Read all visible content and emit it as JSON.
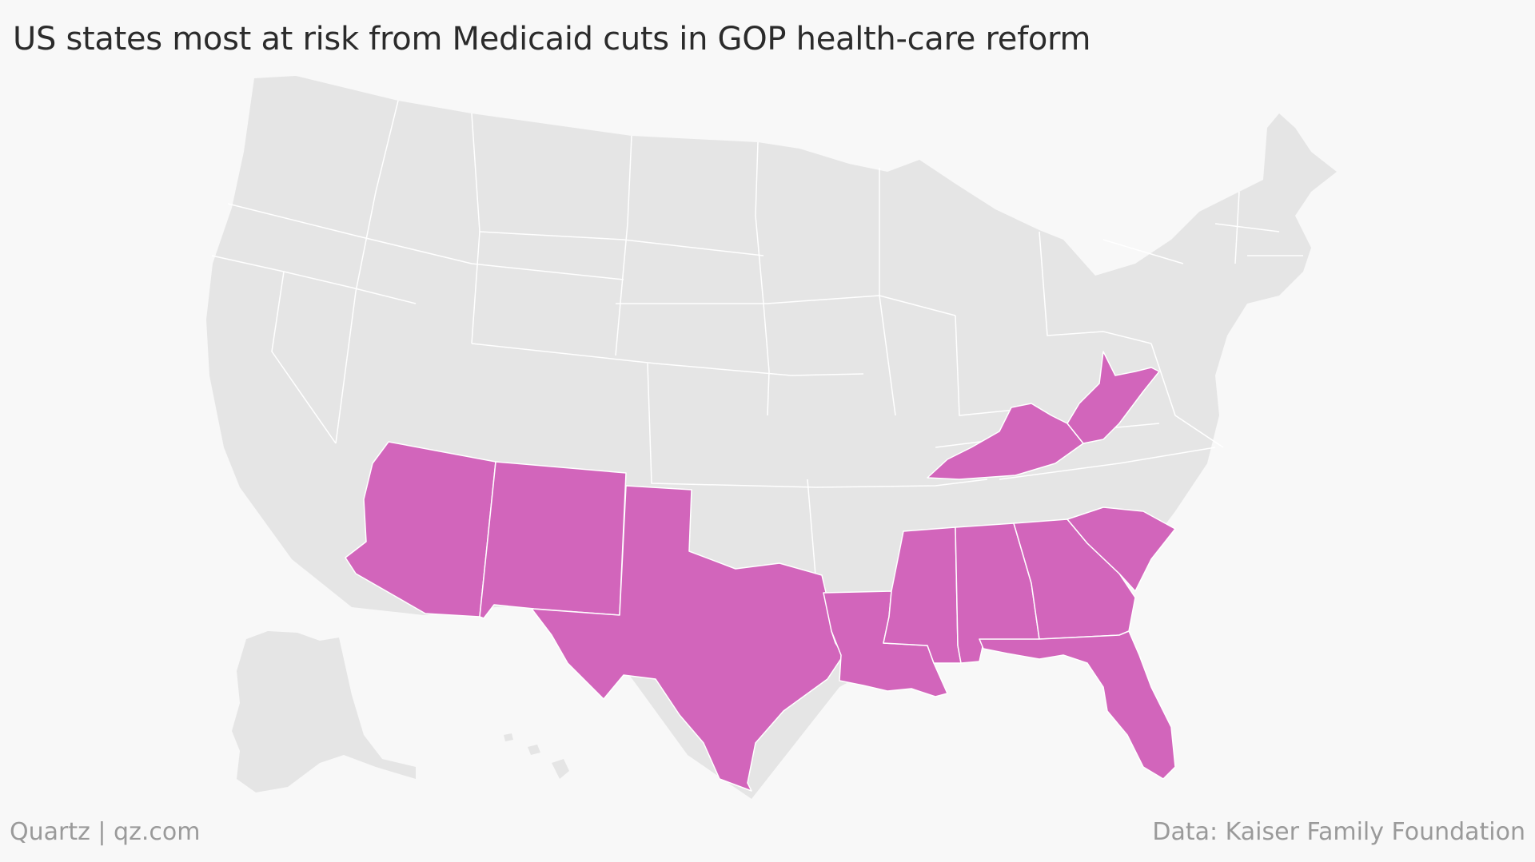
{
  "title": "US states most at risk from Medicaid cuts in GOP health-care reform",
  "footer": {
    "source_left": "Quartz | qz.com",
    "source_right": "Data: Kaiser Family Foundation"
  },
  "colors": {
    "background": "#f8f8f8",
    "base_fill": "#e5e5e5",
    "highlight_fill": "#d265bb",
    "border": "#ffffff"
  },
  "highlighted_states": [
    "Arizona",
    "New Mexico",
    "Texas",
    "Louisiana",
    "Mississippi",
    "Alabama",
    "Georgia",
    "South Carolina",
    "Florida",
    "Kentucky",
    "West Virginia"
  ]
}
